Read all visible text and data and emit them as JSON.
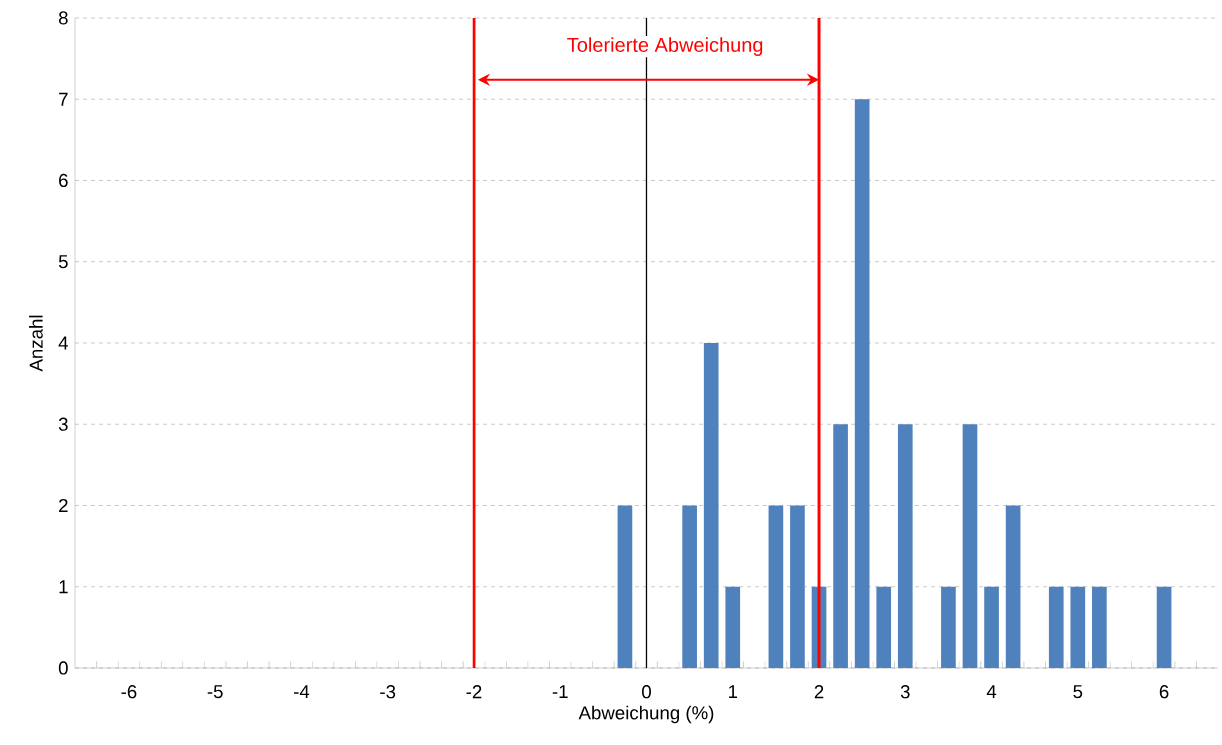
{
  "chart_data": {
    "type": "bar",
    "xlabel": "Abweichung (%)",
    "ylabel": "Anzahl",
    "x": [
      -0.25,
      0.5,
      0.75,
      1,
      1.5,
      1.75,
      2,
      2.25,
      2.5,
      2.75,
      3,
      3.5,
      3.75,
      4,
      4.25,
      4.75,
      5,
      5.25,
      6
    ],
    "values": [
      2,
      2,
      4,
      1,
      2,
      2,
      1,
      3,
      7,
      1,
      3,
      1,
      3,
      1,
      2,
      1,
      1,
      1,
      1
    ],
    "color": "#4f81bd",
    "xlim": [
      -6.625,
      6.625
    ],
    "ylim": [
      0,
      8
    ],
    "xticks": [
      -6,
      -5,
      -4,
      -3,
      -2,
      -1,
      0,
      1,
      2,
      3,
      4,
      5,
      6,
      {
        "value": -6.375,
        "label": null
      },
      {
        "value": -6.125,
        "label": null
      },
      {
        "value": -5.875,
        "label": null
      },
      {
        "value": -5.625,
        "label": null
      },
      {
        "value": -5.375,
        "label": null
      },
      {
        "value": -5.125,
        "label": null
      },
      {
        "value": -4.875,
        "label": null
      },
      {
        "value": -4.625,
        "label": null
      },
      {
        "value": -4.375,
        "label": null
      },
      {
        "value": -4.125,
        "label": null
      },
      {
        "value": -3.875,
        "label": null
      },
      {
        "value": -3.625,
        "label": null
      },
      {
        "value": -3.375,
        "label": null
      },
      {
        "value": -3.125,
        "label": null
      },
      {
        "value": -2.875,
        "label": null
      },
      {
        "value": -2.625,
        "label": null
      },
      {
        "value": -2.375,
        "label": null
      },
      {
        "value": -2.125,
        "label": null
      },
      {
        "value": -1.875,
        "label": null
      },
      {
        "value": -1.625,
        "label": null
      },
      {
        "value": -1.375,
        "label": null
      },
      {
        "value": -1.125,
        "label": null
      },
      {
        "value": -0.875,
        "label": null
      },
      {
        "value": -0.625,
        "label": null
      },
      {
        "value": -0.375,
        "label": null
      },
      {
        "value": -0.125,
        "label": null
      },
      {
        "value": 0.125,
        "label": null
      },
      {
        "value": 0.375,
        "label": null
      },
      {
        "value": 0.625,
        "label": null
      },
      {
        "value": 0.875,
        "label": null
      },
      {
        "value": 1.125,
        "label": null
      },
      {
        "value": 1.375,
        "label": null
      },
      {
        "value": 1.625,
        "label": null
      },
      {
        "value": 1.875,
        "label": null
      },
      {
        "value": 2.125,
        "label": null
      },
      {
        "value": 2.375,
        "label": null
      },
      {
        "value": 2.625,
        "label": null
      },
      {
        "value": 2.875,
        "label": null
      },
      {
        "value": 3.125,
        "label": null
      },
      {
        "value": 3.375,
        "label": null
      },
      {
        "value": 3.625,
        "label": null
      },
      {
        "value": 3.875,
        "label": null
      },
      {
        "value": 4.125,
        "label": null
      },
      {
        "value": 4.375,
        "label": null
      },
      {
        "value": 4.625,
        "label": null
      },
      {
        "value": 4.875,
        "label": null
      },
      {
        "value": 5.125,
        "label": null
      },
      {
        "value": 5.375,
        "label": null
      },
      {
        "value": 5.625,
        "label": null
      },
      {
        "value": 5.875,
        "label": null
      },
      {
        "value": 6.125,
        "label": null
      },
      {
        "value": 6.375,
        "label": null
      }
    ],
    "yticks": [
      0,
      1,
      2,
      3,
      4,
      5,
      6,
      7,
      8
    ],
    "grid": "y",
    "ref_lines": [
      {
        "axis": "x",
        "value": -2,
        "color": "#ff0000"
      },
      {
        "axis": "x",
        "value": 2,
        "color": "#ff0000"
      },
      {
        "axis": "x",
        "value": 0,
        "color": "#000000"
      }
    ],
    "annotations": [
      "Tolerierte Abweichung"
    ]
  }
}
